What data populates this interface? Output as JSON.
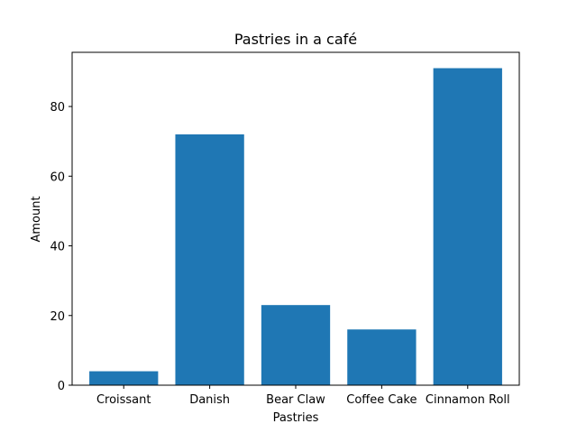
{
  "chart_data": {
    "type": "bar",
    "title": "Pastries in a café",
    "xlabel": "Pastries",
    "ylabel": "Amount",
    "categories": [
      "Croissant",
      "Danish",
      "Bear Claw",
      "Coffee Cake",
      "Cinnamon Roll"
    ],
    "values": [
      4,
      72,
      23,
      16,
      91
    ],
    "ylim": [
      0,
      95.55
    ],
    "yticks": [
      0,
      20,
      40,
      60,
      80
    ],
    "bar_color": "#1f77b4",
    "grid": false,
    "legend": "none"
  }
}
